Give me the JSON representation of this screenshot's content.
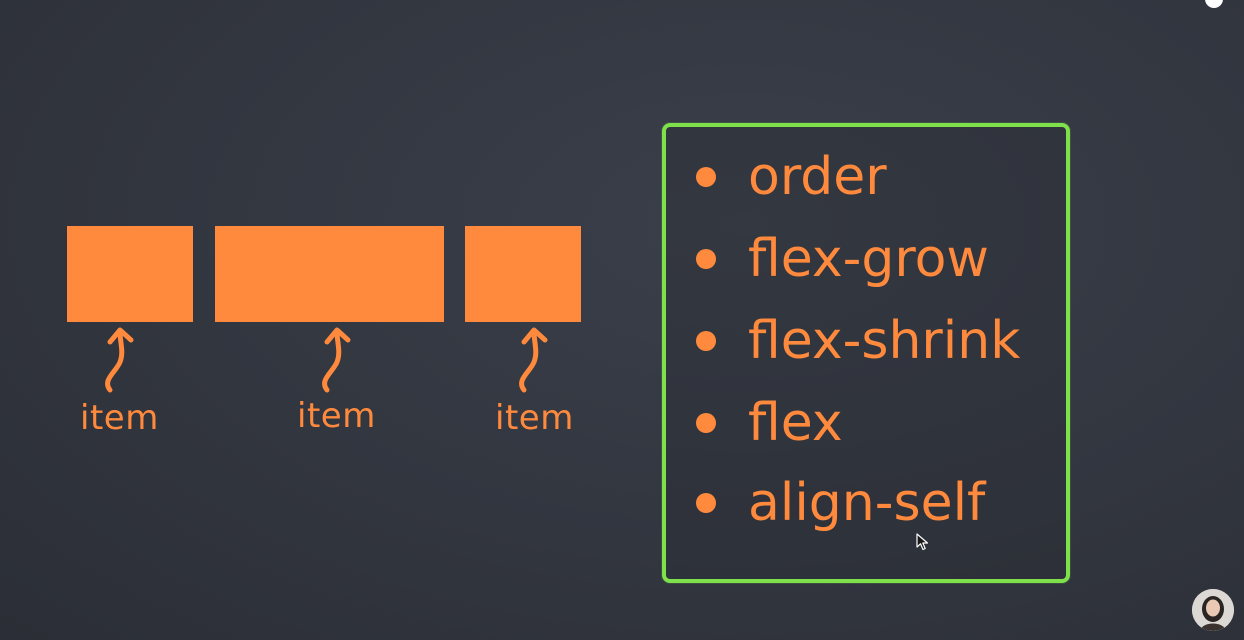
{
  "diagram": {
    "items": [
      {
        "label": "item"
      },
      {
        "label": "item"
      },
      {
        "label": "item"
      }
    ],
    "properties": [
      "order",
      "flex-grow",
      "flex-shrink",
      "flex",
      "align-self"
    ]
  },
  "colors": {
    "background": "#32363f",
    "accent_orange": "#ff8a3d",
    "panel_border_green": "#7ee04a"
  },
  "icons": {
    "arrows": "curly-up-arrow-icon",
    "cursor": "mouse-pointer-icon",
    "top_right": "info-icon",
    "bottom_right": "presenter-avatar"
  }
}
